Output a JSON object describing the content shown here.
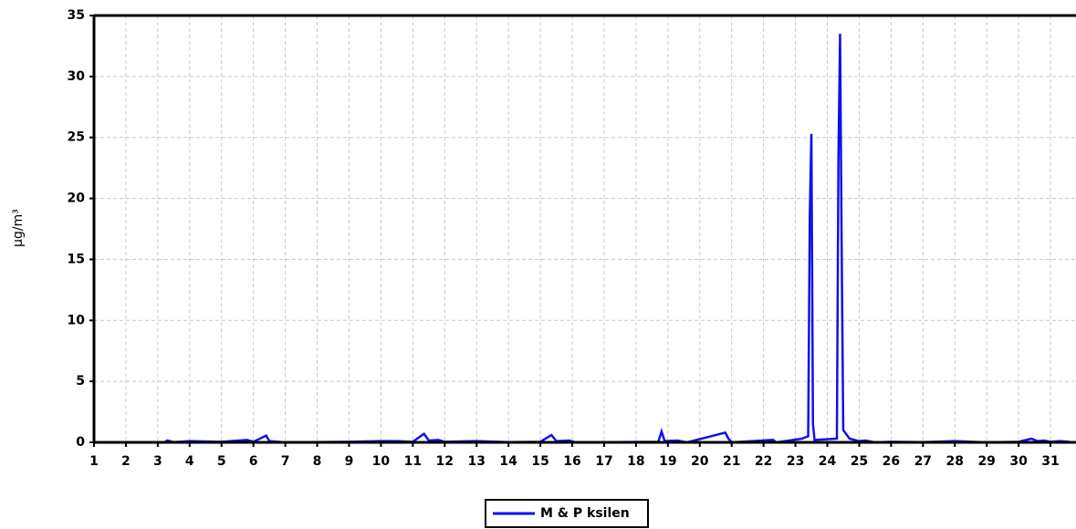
{
  "chart_data": {
    "type": "line",
    "y_label": "µg/m³",
    "x": [
      1.0,
      3.2,
      3.3,
      3.5,
      4.0,
      4.3,
      5.0,
      5.8,
      6.0,
      6.4,
      6.5,
      7.0,
      9.0,
      10.0,
      10.5,
      11.0,
      11.35,
      11.5,
      11.8,
      12.0,
      13.0,
      14.0,
      15.0,
      15.35,
      15.5,
      15.9,
      16.1,
      18.7,
      18.8,
      18.9,
      19.3,
      19.6,
      20.8,
      20.9,
      21.0,
      22.3,
      22.4,
      23.2,
      23.4,
      23.45,
      23.5,
      23.55,
      23.6,
      24.3,
      24.35,
      24.4,
      24.45,
      24.5,
      24.7,
      25.0,
      25.2,
      25.5,
      26.0,
      27.0,
      28.0,
      29.0,
      30.0,
      30.4,
      30.6,
      30.8,
      31.0,
      31.3,
      31.6
    ],
    "series": [
      {
        "name": "M & P ksilen",
        "color": "#1010ee",
        "values": [
          0,
          0,
          0.15,
          0.02,
          0.1,
          0.08,
          0.05,
          0.2,
          0.05,
          0.55,
          0.1,
          0,
          0.05,
          0.1,
          0.1,
          0.05,
          0.7,
          0.15,
          0.2,
          0.05,
          0.1,
          0.02,
          0.05,
          0.6,
          0.1,
          0.15,
          0,
          0.05,
          0.9,
          0.1,
          0.15,
          0,
          0.8,
          0.3,
          0,
          0.2,
          0,
          0.3,
          0.5,
          18.5,
          25.3,
          1.5,
          0.2,
          0.3,
          23.5,
          33.5,
          16,
          1,
          0.3,
          0.1,
          0.15,
          0,
          0.05,
          0.02,
          0.1,
          0,
          0.05,
          0.3,
          0.1,
          0.15,
          0.05,
          0.1,
          0.05
        ]
      }
    ],
    "xlim": [
      1,
      31.8
    ],
    "xticks": [
      1,
      2,
      3,
      4,
      5,
      6,
      7,
      8,
      9,
      10,
      11,
      12,
      13,
      14,
      15,
      16,
      17,
      18,
      19,
      20,
      21,
      22,
      23,
      24,
      25,
      26,
      27,
      28,
      29,
      30,
      31
    ],
    "ylim": [
      0,
      35
    ],
    "yticks": [
      0,
      5,
      10,
      15,
      20,
      25,
      30,
      35
    ],
    "grid": true,
    "legend": "bottom"
  }
}
